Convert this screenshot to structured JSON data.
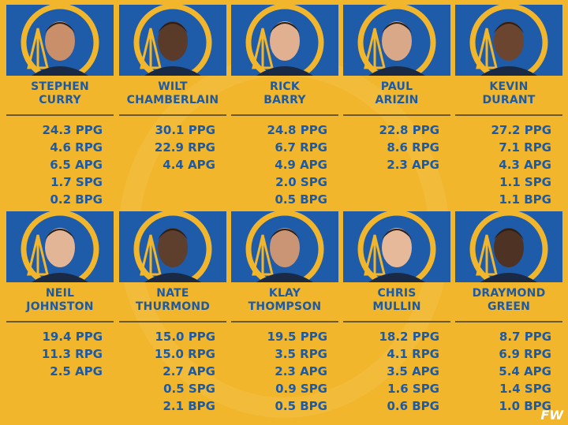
{
  "players": [
    {
      "name": [
        "STEPHEN",
        "CURRY"
      ],
      "stats": [
        "24.3 PPG",
        "4.6 RPG",
        "6.5 APG",
        "1.7 SPG",
        "0.2 BPG"
      ]
    },
    {
      "name": [
        "WILT",
        "CHAMBERLAIN"
      ],
      "stats": [
        "30.1 PPG",
        "22.9 RPG",
        "4.4 APG"
      ]
    },
    {
      "name": [
        "RICK",
        "BARRY"
      ],
      "stats": [
        "24.8 PPG",
        "6.7 RPG",
        "4.9 APG",
        "2.0 SPG",
        "0.5 BPG"
      ]
    },
    {
      "name": [
        "PAUL",
        "ARIZIN"
      ],
      "stats": [
        "22.8 PPG",
        "8.6 RPG",
        "2.3 APG"
      ]
    },
    {
      "name": [
        "KEVIN",
        "DURANT"
      ],
      "stats": [
        "27.2 PPG",
        "7.1 RPG",
        "4.3 APG",
        "1.1 SPG",
        "1.1 BPG"
      ]
    },
    {
      "name": [
        "NEIL",
        "JOHNSTON"
      ],
      "stats": [
        "19.4 PPG",
        "11.3 RPG",
        "2.5 APG"
      ]
    },
    {
      "name": [
        "NATE",
        "THURMOND"
      ],
      "stats": [
        "15.0 PPG",
        "15.0 RPG",
        "2.7 APG",
        "0.5 SPG",
        "2.1 BPG"
      ]
    },
    {
      "name": [
        "KLAY",
        "THOMPSON"
      ],
      "stats": [
        "19.5 PPG",
        "3.5 RPG",
        "2.3 APG",
        "0.9 SPG",
        "0.5 BPG"
      ]
    },
    {
      "name": [
        "CHRIS",
        "MULLIN"
      ],
      "stats": [
        "18.2 PPG",
        "4.1 RPG",
        "3.5 APG",
        "1.6 SPG",
        "0.6 BPG"
      ]
    },
    {
      "name": [
        "DRAYMOND",
        "GREEN"
      ],
      "stats": [
        "8.7 PPG",
        "6.9 RPG",
        "5.4 APG",
        "1.4 SPG",
        "1.0 BPG"
      ]
    }
  ],
  "watermark": "FW"
}
